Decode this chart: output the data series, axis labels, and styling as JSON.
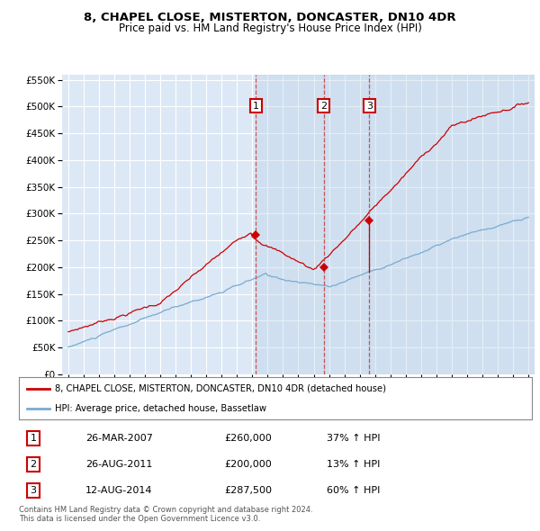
{
  "title1": "8, CHAPEL CLOSE, MISTERTON, DONCASTER, DN10 4DR",
  "title2": "Price paid vs. HM Land Registry's House Price Index (HPI)",
  "legend_label1": "8, CHAPEL CLOSE, MISTERTON, DONCASTER, DN10 4DR (detached house)",
  "legend_label2": "HPI: Average price, detached house, Bassetlaw",
  "sale_color": "#cc0000",
  "hpi_color": "#7aabcf",
  "dashed_line_color": "#dd8888",
  "background_plot": "#dce8f5",
  "grid_color": "#ffffff",
  "transactions": [
    {
      "num": 1,
      "date": "26-MAR-2007",
      "price": 260000,
      "pct": "37%",
      "direction": "↑"
    },
    {
      "num": 2,
      "date": "26-AUG-2011",
      "price": 200000,
      "pct": "13%",
      "direction": "↑"
    },
    {
      "num": 3,
      "date": "12-AUG-2014",
      "price": 287500,
      "pct": "60%",
      "direction": "↑"
    }
  ],
  "transaction_dates_decimal": [
    2007.23,
    2011.65,
    2014.62
  ],
  "footer1": "Contains HM Land Registry data © Crown copyright and database right 2024.",
  "footer2": "This data is licensed under the Open Government Licence v3.0.",
  "ylim": [
    0,
    560000
  ],
  "xlim_start": 1994.6,
  "xlim_end": 2025.4,
  "seed": 42
}
